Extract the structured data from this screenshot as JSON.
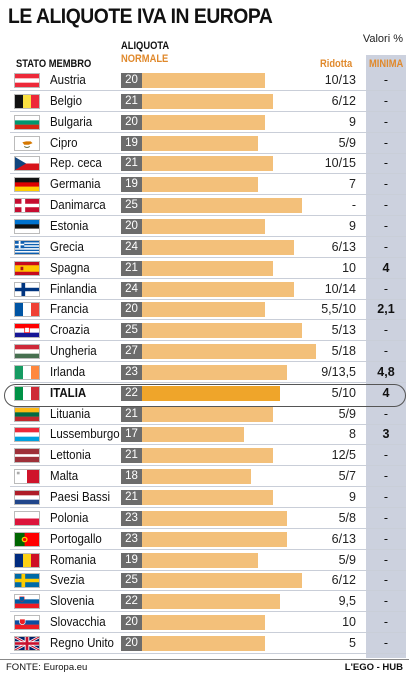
{
  "title": "LE ALIQUOTE IVA IN EUROPA",
  "unit_note": "Valori %",
  "headers": {
    "stato": "STATO MEMBRO",
    "aliquota_line1": "ALIQUOTA",
    "aliquota_line2": "NORMALE",
    "ridotta": "Ridotta",
    "minima": "MINIMA"
  },
  "colors": {
    "bar": "#f3c07a",
    "bar_highlight": "#efa52a",
    "value_box": "#6c6c6c",
    "accent": "#e0892c",
    "minima_column": "#ccd1de"
  },
  "chart_data": {
    "type": "bar",
    "orientation": "horizontal",
    "title": "LE ALIQUOTE IVA IN EUROPA",
    "ylabel": "Valori %",
    "highlight": "ITALIA",
    "xlim": [
      0,
      27
    ],
    "rows": [
      {
        "country": "Austria",
        "flag": "austria",
        "normale": 20,
        "ridotta": "10/13",
        "minima": "-"
      },
      {
        "country": "Belgio",
        "flag": "belgium",
        "normale": 21,
        "ridotta": "6/12",
        "minima": "-"
      },
      {
        "country": "Bulgaria",
        "flag": "bulgaria",
        "normale": 20,
        "ridotta": "9",
        "minima": "-"
      },
      {
        "country": "Cipro",
        "flag": "cyprus",
        "normale": 19,
        "ridotta": "5/9",
        "minima": "-"
      },
      {
        "country": "Rep. ceca",
        "flag": "czech",
        "normale": 21,
        "ridotta": "10/15",
        "minima": "-"
      },
      {
        "country": "Germania",
        "flag": "germany",
        "normale": 19,
        "ridotta": "7",
        "minima": "-"
      },
      {
        "country": "Danimarca",
        "flag": "denmark",
        "normale": 25,
        "ridotta": "-",
        "minima": "-"
      },
      {
        "country": "Estonia",
        "flag": "estonia",
        "normale": 20,
        "ridotta": "9",
        "minima": "-"
      },
      {
        "country": "Grecia",
        "flag": "greece",
        "normale": 24,
        "ridotta": "6/13",
        "minima": "-"
      },
      {
        "country": "Spagna",
        "flag": "spain",
        "normale": 21,
        "ridotta": "10",
        "minima": "4"
      },
      {
        "country": "Finlandia",
        "flag": "finland",
        "normale": 24,
        "ridotta": "10/14",
        "minima": "-"
      },
      {
        "country": "Francia",
        "flag": "france",
        "normale": 20,
        "ridotta": "5,5/10",
        "minima": "2,1"
      },
      {
        "country": "Croazia",
        "flag": "croatia",
        "normale": 25,
        "ridotta": "5/13",
        "minima": "-"
      },
      {
        "country": "Ungheria",
        "flag": "hungary",
        "normale": 27,
        "ridotta": "5/18",
        "minima": "-"
      },
      {
        "country": "Irlanda",
        "flag": "ireland",
        "normale": 23,
        "ridotta": "9/13,5",
        "minima": "4,8"
      },
      {
        "country": "ITALIA",
        "flag": "italy",
        "normale": 22,
        "ridotta": "5/10",
        "minima": "4"
      },
      {
        "country": "Lituania",
        "flag": "lithuania",
        "normale": 21,
        "ridotta": "5/9",
        "minima": "-"
      },
      {
        "country": "Lussemburgo",
        "flag": "luxembourg",
        "normale": 17,
        "ridotta": "8",
        "minima": "3"
      },
      {
        "country": "Lettonia",
        "flag": "latvia",
        "normale": 21,
        "ridotta": "12/5",
        "minima": "-"
      },
      {
        "country": "Malta",
        "flag": "malta",
        "normale": 18,
        "ridotta": "5/7",
        "minima": "-"
      },
      {
        "country": "Paesi Bassi",
        "flag": "netherlands",
        "normale": 21,
        "ridotta": "9",
        "minima": "-"
      },
      {
        "country": "Polonia",
        "flag": "poland",
        "normale": 23,
        "ridotta": "5/8",
        "minima": "-"
      },
      {
        "country": "Portogallo",
        "flag": "portugal",
        "normale": 23,
        "ridotta": "6/13",
        "minima": "-"
      },
      {
        "country": "Romania",
        "flag": "romania",
        "normale": 19,
        "ridotta": "5/9",
        "minima": "-"
      },
      {
        "country": "Svezia",
        "flag": "sweden",
        "normale": 25,
        "ridotta": "6/12",
        "minima": "-"
      },
      {
        "country": "Slovenia",
        "flag": "slovenia",
        "normale": 22,
        "ridotta": "9,5",
        "minima": "-"
      },
      {
        "country": "Slovacchia",
        "flag": "slovakia",
        "normale": 20,
        "ridotta": "10",
        "minima": "-"
      },
      {
        "country": "Regno Unito",
        "flag": "uk",
        "normale": 20,
        "ridotta": "5",
        "minima": "-"
      }
    ]
  },
  "footer": {
    "source": "FONTE: Europa.eu",
    "brand": "L'EGO - HUB"
  }
}
